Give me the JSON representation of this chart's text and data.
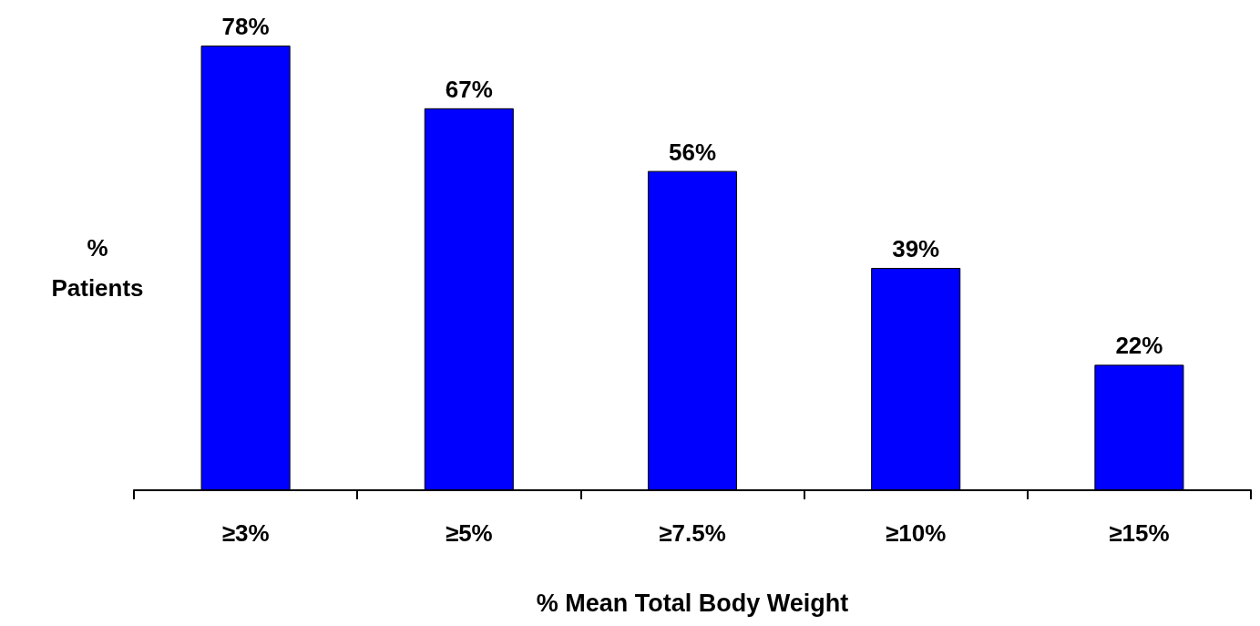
{
  "chart_data": {
    "type": "bar",
    "xlabel": "% Mean Total Body Weight",
    "ylabel": "% Patients",
    "categories": [
      "≥3%",
      "≥5%",
      "≥7.5%",
      "≥10%",
      "≥15%"
    ],
    "values": [
      78,
      67,
      56,
      39,
      22
    ],
    "value_labels": [
      "78%",
      "67%",
      "56%",
      "39%",
      "22%"
    ],
    "color": "#0000ff"
  }
}
